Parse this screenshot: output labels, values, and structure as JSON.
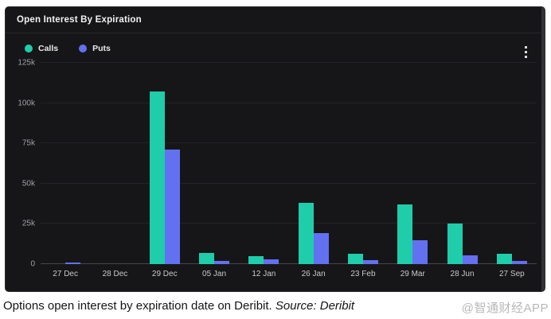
{
  "card": {
    "title": "Open Interest By Expiration",
    "menu_icon": "kebab-vertical"
  },
  "legend": [
    {
      "label": "Calls",
      "color": "#1fcdab"
    },
    {
      "label": "Puts",
      "color": "#6370ef"
    }
  ],
  "chart_data": {
    "type": "bar",
    "title": "Open Interest By Expiration",
    "categories": [
      "27 Dec",
      "28 Dec",
      "29 Dec",
      "05 Jan",
      "12 Jan",
      "26 Jan",
      "23 Feb",
      "29 Mar",
      "28 Jun",
      "27 Sep"
    ],
    "series": [
      {
        "name": "Calls",
        "color": "#1fcdab",
        "values": [
          0,
          0,
          107000,
          7000,
          5000,
          38000,
          6500,
          37000,
          25000,
          6500
        ]
      },
      {
        "name": "Puts",
        "color": "#6370ef",
        "values": [
          1000,
          0,
          71000,
          2000,
          3000,
          19500,
          2500,
          15000,
          5500,
          2000
        ]
      }
    ],
    "ylim": [
      0,
      125000
    ],
    "yticks": [
      0,
      25000,
      50000,
      75000,
      100000,
      125000
    ],
    "ytick_labels": [
      "0",
      "25k",
      "50k",
      "75k",
      "100k",
      "125k"
    ],
    "xlabel": "",
    "ylabel": "",
    "grid": true,
    "legend_position": "top-left",
    "background": "#161618"
  },
  "caption": {
    "text": "Options open interest by expiration date on Deribit. ",
    "source": "Source: Deribit"
  },
  "watermark": "@智通财经APP"
}
